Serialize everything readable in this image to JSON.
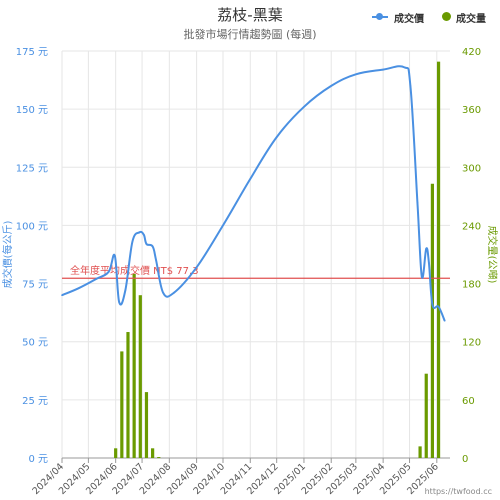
{
  "title": "荔枝-黑葉",
  "subtitle": "批發市場行情趨勢圖 (每週)",
  "watermark": "https://twfood.cc",
  "colors": {
    "price_line": "#4a90e2",
    "volume_bar": "#6a9a00",
    "avg_line": "#e05050",
    "left_axis_text": "#4a90e2",
    "right_axis_text": "#6a9a00",
    "grid": "#e6e6e6"
  },
  "legend": {
    "price_label": "成交價",
    "volume_label": "成交量"
  },
  "chart_data": {
    "type": "line",
    "title": "荔枝-黑葉",
    "subtitle": "批發市場行情趨勢圖 (每週)",
    "x_categories": [
      "2024/04",
      "2024/05",
      "2024/06",
      "2024/07",
      "2024/08",
      "2024/09",
      "2024/10",
      "2024/11",
      "2024/12",
      "2025/01",
      "2025/02",
      "2025/03",
      "2025/04",
      "2025/05",
      "2025/06"
    ],
    "y_left": {
      "label": "成交價(每公斤)",
      "range": [
        0,
        175
      ],
      "ticks": [
        0,
        25,
        50,
        75,
        100,
        125,
        150,
        175
      ],
      "tick_labels": [
        "0 元",
        "25 元",
        "50 元",
        "75 元",
        "100 元",
        "125 元",
        "150 元",
        "175 元"
      ]
    },
    "y_right": {
      "label": "成交量(公噸)",
      "range": [
        0,
        420
      ],
      "ticks": [
        0,
        60,
        120,
        180,
        240,
        300,
        360,
        420
      ],
      "tick_labels": [
        "0",
        "60",
        "120",
        "180",
        "240",
        "300",
        "360",
        "420"
      ]
    },
    "average_line": {
      "value": 77.3,
      "label": "全年度平均成交價 NT$ 77.3"
    },
    "series": [
      {
        "name": "成交價",
        "axis": "left",
        "type": "line",
        "points": [
          {
            "x": "2024/04/01",
            "y": 70
          },
          {
            "x": "2024/04/20",
            "y": 73
          },
          {
            "x": "2024/05/10",
            "y": 77
          },
          {
            "x": "2024/05/24",
            "y": 80
          },
          {
            "x": "2024/05/31",
            "y": 87
          },
          {
            "x": "2024/06/05",
            "y": 67
          },
          {
            "x": "2024/06/12",
            "y": 72
          },
          {
            "x": "2024/06/20",
            "y": 93
          },
          {
            "x": "2024/06/28",
            "y": 97
          },
          {
            "x": "2024/07/03",
            "y": 96
          },
          {
            "x": "2024/07/06",
            "y": 92
          },
          {
            "x": "2024/07/13",
            "y": 91
          },
          {
            "x": "2024/07/17",
            "y": 85
          },
          {
            "x": "2024/07/25",
            "y": 71
          },
          {
            "x": "2024/08/06",
            "y": 71
          },
          {
            "x": "2024/09/01",
            "y": 82
          },
          {
            "x": "2024/10/01",
            "y": 100
          },
          {
            "x": "2024/11/01",
            "y": 120
          },
          {
            "x": "2024/12/01",
            "y": 138
          },
          {
            "x": "2025/01/01",
            "y": 151
          },
          {
            "x": "2025/02/01",
            "y": 160
          },
          {
            "x": "2025/03/01",
            "y": 165
          },
          {
            "x": "2025/04/01",
            "y": 167
          },
          {
            "x": "2025/04/25",
            "y": 168
          },
          {
            "x": "2025/05/02",
            "y": 160
          },
          {
            "x": "2025/05/10",
            "y": 110
          },
          {
            "x": "2025/05/15",
            "y": 78
          },
          {
            "x": "2025/05/20",
            "y": 90
          },
          {
            "x": "2025/05/23",
            "y": 84
          },
          {
            "x": "2025/05/27",
            "y": 66
          },
          {
            "x": "2025/06/03",
            "y": 65
          },
          {
            "x": "2025/06/10",
            "y": 59
          }
        ]
      },
      {
        "name": "成交量",
        "axis": "right",
        "type": "bar",
        "points": [
          {
            "x": "2024/06/01",
            "y": 10
          },
          {
            "x": "2024/06/08",
            "y": 110
          },
          {
            "x": "2024/06/15",
            "y": 130
          },
          {
            "x": "2024/06/22",
            "y": 190
          },
          {
            "x": "2024/06/29",
            "y": 168
          },
          {
            "x": "2024/07/06",
            "y": 68
          },
          {
            "x": "2024/07/13",
            "y": 10
          },
          {
            "x": "2024/07/20",
            "y": 1
          },
          {
            "x": "2025/05/13",
            "y": 12
          },
          {
            "x": "2025/05/20",
            "y": 87
          },
          {
            "x": "2025/05/27",
            "y": 283
          },
          {
            "x": "2025/06/03",
            "y": 409
          }
        ]
      }
    ],
    "grid": true,
    "legend_position": "top-right"
  }
}
